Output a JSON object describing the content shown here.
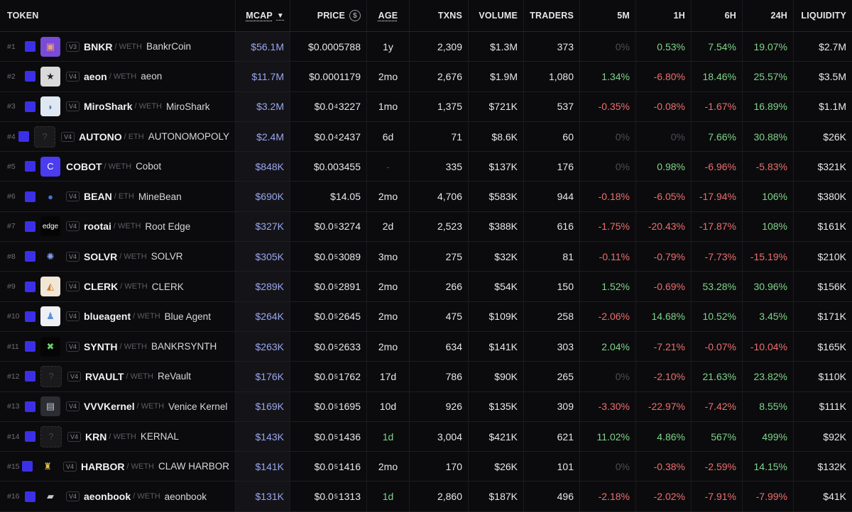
{
  "headers": {
    "token": "TOKEN",
    "mcap": "MCAP",
    "price": "PRICE",
    "age": "AGE",
    "txns": "TXNS",
    "volume": "VOLUME",
    "traders": "TRADERS",
    "m5": "5M",
    "h1": "1H",
    "h6": "6H",
    "h24": "24H",
    "liquidity": "LIQUIDITY"
  },
  "colors": {
    "positive": "#7ed58a",
    "negative": "#ef6e6e",
    "accent": "#3b30e8",
    "mcap": "#9aa6ee"
  },
  "rows": [
    {
      "rank": "#1",
      "ver": "V3",
      "sym": "BNKR",
      "pair": "/ WETH",
      "name": "BankrCoin",
      "icon": "bankr-logo",
      "mcap": "$56.1M",
      "price": "$0.0005788",
      "age": "1y",
      "txns": "2,309",
      "volume": "$1.3M",
      "traders": "373",
      "m5": "0%",
      "h1": "0.53%",
      "h6": "7.54%",
      "h24": "19.07%",
      "liq": "$2.7M"
    },
    {
      "rank": "#2",
      "ver": "V4",
      "sym": "aeon",
      "pair": "/ WETH",
      "name": "aeon",
      "icon": "star-logo",
      "mcap": "$11.7M",
      "price": "$0.0001179",
      "age": "2mo",
      "txns": "2,676",
      "volume": "$1.9M",
      "traders": "1,080",
      "m5": "1.34%",
      "h1": "-6.80%",
      "h6": "18.46%",
      "h24": "25.57%",
      "liq": "$3.5M"
    },
    {
      "rank": "#3",
      "ver": "V4",
      "sym": "MiroShark",
      "pair": "/ WETH",
      "name": "MiroShark",
      "icon": "shark-logo",
      "mcap": "$3.2M",
      "price": {
        "pre": "$0.0",
        "sub": "4",
        "post": "3227"
      },
      "age": "1mo",
      "txns": "1,375",
      "volume": "$721K",
      "traders": "537",
      "m5": "-0.35%",
      "h1": "-0.08%",
      "h6": "-1.67%",
      "h24": "16.89%",
      "liq": "$1.1M"
    },
    {
      "rank": "#4",
      "ver": "V4",
      "sym": "AUTONO",
      "pair": "/ ETH",
      "name": "AUTONOMOPOLY",
      "icon": "placeholder-logo",
      "mcap": "$2.4M",
      "price": {
        "pre": "$0.0",
        "sub": "4",
        "post": "2437"
      },
      "age": "6d",
      "txns": "71",
      "volume": "$8.6K",
      "traders": "60",
      "m5": "0%",
      "h1": "0%",
      "h6": "7.66%",
      "h24": "30.88%",
      "liq": "$26K"
    },
    {
      "rank": "#5",
      "ver": "",
      "sym": "COBOT",
      "pair": "/ WETH",
      "name": "Cobot",
      "icon": "cobot-logo",
      "mcap": "$848K",
      "price": "$0.003455",
      "age": "-",
      "txns": "335",
      "volume": "$137K",
      "traders": "176",
      "m5": "0%",
      "h1": "0.98%",
      "h6": "-6.96%",
      "h24": "-5.83%",
      "liq": "$321K"
    },
    {
      "rank": "#6",
      "ver": "V4",
      "sym": "BEAN",
      "pair": "/ ETH",
      "name": "MineBean",
      "icon": "bean-logo",
      "mcap": "$690K",
      "price": "$14.05",
      "age": "2mo",
      "txns": "4,706",
      "volume": "$583K",
      "traders": "944",
      "m5": "-0.18%",
      "h1": "-6.05%",
      "h6": "-17.94%",
      "h24": "106%",
      "liq": "$380K"
    },
    {
      "rank": "#7",
      "ver": "V4",
      "sym": "rootai",
      "pair": "/ WETH",
      "name": "Root Edge",
      "icon": "edge-logo",
      "mcap": "$327K",
      "price": {
        "pre": "$0.0",
        "sub": "5",
        "post": "3274"
      },
      "age": "2d",
      "txns": "2,523",
      "volume": "$388K",
      "traders": "616",
      "m5": "-1.75%",
      "h1": "-20.43%",
      "h6": "-17.87%",
      "h24": "108%",
      "liq": "$161K"
    },
    {
      "rank": "#8",
      "ver": "V4",
      "sym": "SOLVR",
      "pair": "/ WETH",
      "name": "SOLVR",
      "icon": "solvr-logo",
      "mcap": "$305K",
      "price": {
        "pre": "$0.0",
        "sub": "5",
        "post": "3089"
      },
      "age": "3mo",
      "txns": "275",
      "volume": "$32K",
      "traders": "81",
      "m5": "-0.11%",
      "h1": "-0.79%",
      "h6": "-7.73%",
      "h24": "-15.19%",
      "liq": "$210K"
    },
    {
      "rank": "#9",
      "ver": "V4",
      "sym": "CLERK",
      "pair": "/ WETH",
      "name": "CLERK",
      "icon": "fox-logo",
      "mcap": "$289K",
      "price": {
        "pre": "$0.0",
        "sub": "5",
        "post": "2891"
      },
      "age": "2mo",
      "txns": "266",
      "volume": "$54K",
      "traders": "150",
      "m5": "1.52%",
      "h1": "-0.69%",
      "h6": "53.28%",
      "h24": "30.96%",
      "liq": "$156K"
    },
    {
      "rank": "#10",
      "ver": "V4",
      "sym": "blueagent",
      "pair": "/ WETH",
      "name": "Blue Agent",
      "icon": "agent-logo",
      "mcap": "$264K",
      "price": {
        "pre": "$0.0",
        "sub": "5",
        "post": "2645"
      },
      "age": "2mo",
      "txns": "475",
      "volume": "$109K",
      "traders": "258",
      "m5": "-2.06%",
      "h1": "14.68%",
      "h6": "10.52%",
      "h24": "3.45%",
      "liq": "$171K"
    },
    {
      "rank": "#11",
      "ver": "V4",
      "sym": "SYNTH",
      "pair": "/ WETH",
      "name": "BANKRSYNTH",
      "icon": "synth-logo",
      "mcap": "$263K",
      "price": {
        "pre": "$0.0",
        "sub": "5",
        "post": "2633"
      },
      "age": "2mo",
      "txns": "634",
      "volume": "$141K",
      "traders": "303",
      "m5": "2.04%",
      "h1": "-7.21%",
      "h6": "-0.07%",
      "h24": "-10.04%",
      "liq": "$165K"
    },
    {
      "rank": "#12",
      "ver": "V4",
      "sym": "RVAULT",
      "pair": "/ WETH",
      "name": "ReVault",
      "icon": "placeholder-logo",
      "mcap": "$176K",
      "price": {
        "pre": "$0.0",
        "sub": "5",
        "post": "1762"
      },
      "age": "17d",
      "txns": "786",
      "volume": "$90K",
      "traders": "265",
      "m5": "0%",
      "h1": "-2.10%",
      "h6": "21.63%",
      "h24": "23.82%",
      "liq": "$110K"
    },
    {
      "rank": "#13",
      "ver": "V4",
      "sym": "VVVKernel",
      "pair": "/ WETH",
      "name": "Venice Kernel",
      "icon": "kernel-logo",
      "mcap": "$169K",
      "price": {
        "pre": "$0.0",
        "sub": "5",
        "post": "1695"
      },
      "age": "10d",
      "txns": "926",
      "volume": "$135K",
      "traders": "309",
      "m5": "-3.30%",
      "h1": "-22.97%",
      "h6": "-7.42%",
      "h24": "8.55%",
      "liq": "$111K"
    },
    {
      "rank": "#14",
      "ver": "V4",
      "sym": "KRN",
      "pair": "/ WETH",
      "name": "KERNAL",
      "icon": "placeholder-logo",
      "mcap": "$143K",
      "price": {
        "pre": "$0.0",
        "sub": "5",
        "post": "1436"
      },
      "age": "1d",
      "txns": "3,004",
      "volume": "$421K",
      "traders": "621",
      "m5": "11.02%",
      "h1": "4.86%",
      "h6": "567%",
      "h24": "499%",
      "liq": "$92K"
    },
    {
      "rank": "#15",
      "ver": "V4",
      "sym": "HARBOR",
      "pair": "/ WETH",
      "name": "CLAW HARBOR",
      "icon": "harbor-logo",
      "mcap": "$141K",
      "price": {
        "pre": "$0.0",
        "sub": "5",
        "post": "1416"
      },
      "age": "2mo",
      "txns": "170",
      "volume": "$26K",
      "traders": "101",
      "m5": "0%",
      "h1": "-0.38%",
      "h6": "-2.59%",
      "h24": "14.15%",
      "liq": "$132K"
    },
    {
      "rank": "#16",
      "ver": "V4",
      "sym": "aeonbook",
      "pair": "/ WETH",
      "name": "aeonbook",
      "icon": "book-logo",
      "mcap": "$131K",
      "price": {
        "pre": "$0.0",
        "sub": "5",
        "post": "1313"
      },
      "age": "1d",
      "txns": "2,860",
      "volume": "$187K",
      "traders": "496",
      "m5": "-2.18%",
      "h1": "-2.02%",
      "h6": "-7.91%",
      "h24": "-7.99%",
      "liq": "$41K"
    }
  ]
}
